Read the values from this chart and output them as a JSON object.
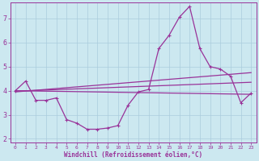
{
  "background_color": "#cce8f0",
  "grid_color": "#aaccdd",
  "line_color": "#993399",
  "xlabel": "Windchill (Refroidissement éolien,°C)",
  "xlim": [
    -0.5,
    23.5
  ],
  "ylim": [
    1.85,
    7.65
  ],
  "yticks": [
    2,
    3,
    4,
    5,
    6,
    7
  ],
  "xticks": [
    0,
    1,
    2,
    3,
    4,
    5,
    6,
    7,
    8,
    9,
    10,
    11,
    12,
    13,
    14,
    15,
    16,
    17,
    18,
    19,
    20,
    21,
    22,
    23
  ],
  "series1_x": [
    0,
    1,
    2,
    3,
    4,
    5,
    6,
    7,
    8,
    9,
    10,
    11,
    12,
    13,
    14,
    15,
    16,
    17,
    18,
    19,
    20,
    21,
    22,
    23
  ],
  "series1_y": [
    4.0,
    4.4,
    3.6,
    3.6,
    3.7,
    2.8,
    2.65,
    2.4,
    2.4,
    2.45,
    2.55,
    3.4,
    3.95,
    4.05,
    5.75,
    6.3,
    7.05,
    7.5,
    5.75,
    5.0,
    4.9,
    4.6,
    3.5,
    3.9
  ],
  "series2_x": [
    0,
    23
  ],
  "series2_y": [
    4.0,
    3.85
  ],
  "series3_x": [
    0,
    23
  ],
  "series3_y": [
    3.98,
    4.35
  ],
  "series4_x": [
    0,
    23
  ],
  "series4_y": [
    3.95,
    4.75
  ],
  "marker_size": 2.0,
  "line_width": 0.9
}
